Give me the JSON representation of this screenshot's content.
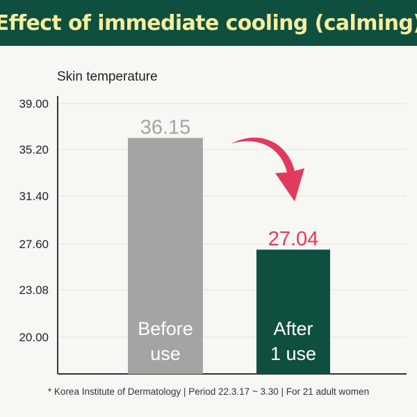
{
  "title": "Effect of immediate cooling (calming)",
  "footnote": "* Korea Institute of Dermatology | Period 22.3.17 ~ 3.30 | For 21 adult women",
  "colors": {
    "header_bg": "#0f4f40",
    "header_text": "#f5ef9d",
    "before_bar": "#a4a4a4",
    "after_bar": "#0f4f40",
    "before_value": "#a4a4a4",
    "after_value": "#e23a5c",
    "arrow": "#e23a5c",
    "grid": "#e2e2de"
  },
  "chart_data": {
    "type": "bar",
    "title": "Effect of immediate cooling (calming)",
    "ylabel": "Skin temperature",
    "xlabel": "",
    "yticks": [
      "39.00",
      "35.20",
      "31.40",
      "27.60",
      "23.08",
      "20.00"
    ],
    "categories": [
      "Before use",
      "After 1 use"
    ],
    "category_lines": [
      [
        "Before",
        "use"
      ],
      [
        "After",
        "1 use"
      ]
    ],
    "values": [
      36.15,
      27.04
    ],
    "value_labels": [
      "36.15",
      "27.04"
    ],
    "grid": true,
    "annotation": "curved arrow from Before to After"
  }
}
